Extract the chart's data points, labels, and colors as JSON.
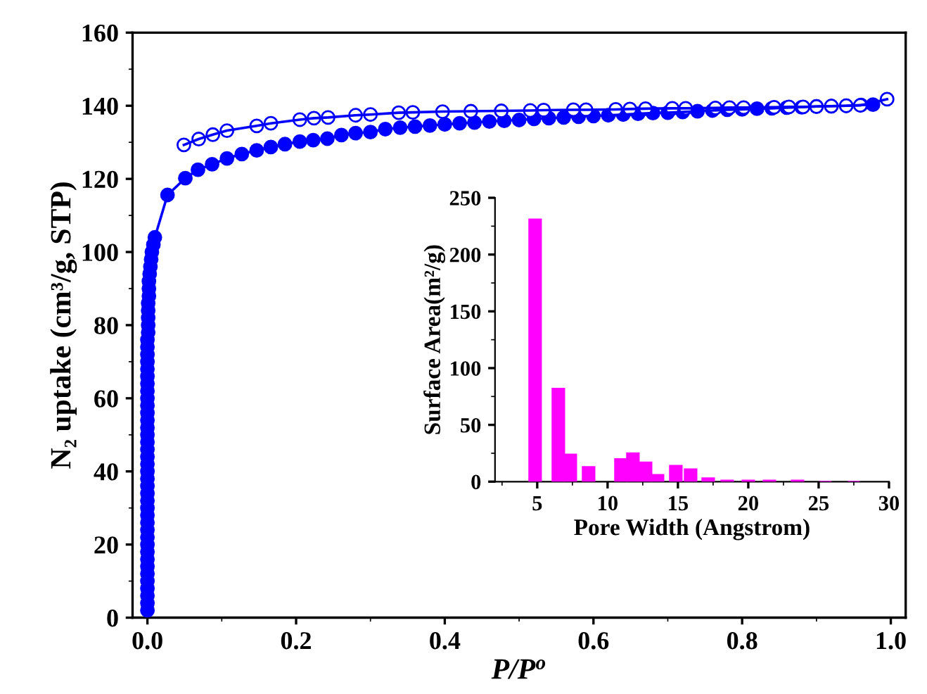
{
  "chart_data": [
    {
      "type": "line",
      "xlabel": "P/P$^{o}$",
      "ylabel": "N₂ uptake (cm³/g, STP)",
      "xlim": [
        -0.02,
        1.02
      ],
      "ylim": [
        0,
        160
      ],
      "xticks": [
        {
          "value": 0,
          "label": "0.0"
        },
        {
          "value": 0.2,
          "label": "0.2"
        },
        {
          "value": 0.4,
          "label": "0.4"
        },
        {
          "value": 0.6,
          "label": "0.6"
        },
        {
          "value": 0.8,
          "label": "0.8"
        },
        {
          "value": 1.0,
          "label": "1.0"
        }
      ],
      "yticks": [
        0,
        20,
        40,
        60,
        80,
        100,
        120,
        140,
        160
      ],
      "marker": "circle",
      "line_style": "solid",
      "grid": false,
      "legend": false,
      "series": [
        {
          "color": "#0000ff",
          "x": [
            0.0,
            0.0,
            0.0,
            0.0,
            0.0,
            0.0,
            0.0,
            0.0,
            0.0,
            0.0,
            0.0,
            0.0,
            0.0,
            0.0,
            0.0,
            0.0,
            0.0,
            0.0,
            0.0,
            0.0,
            0.0,
            0.0,
            0.0,
            0.0,
            0.0,
            0.0,
            0.0,
            0.0,
            0.0,
            0.0,
            0.0,
            0.0,
            0.0,
            0.0,
            0.0,
            0.0,
            0.0,
            0.0,
            0.001,
            0.001,
            0.001,
            0.001,
            0.001,
            0.002,
            0.002,
            0.002,
            0.003,
            0.004,
            0.005,
            0.006,
            0.008,
            0.01,
            0.027,
            0.051,
            0.068,
            0.087,
            0.107,
            0.127,
            0.147,
            0.166,
            0.185,
            0.205,
            0.223,
            0.242,
            0.261,
            0.28,
            0.3,
            0.32,
            0.34,
            0.36,
            0.38,
            0.4,
            0.42,
            0.44,
            0.46,
            0.48,
            0.5,
            0.52,
            0.54,
            0.56,
            0.58,
            0.6,
            0.62,
            0.64,
            0.66,
            0.68,
            0.7,
            0.72,
            0.74,
            0.76,
            0.78,
            0.8,
            0.82,
            0.84,
            0.86,
            0.88,
            0.9,
            0.92,
            0.94,
            0.96,
            0.976
          ],
          "values": [
            2,
            4,
            6,
            8,
            10,
            12,
            14,
            16,
            18,
            20,
            22,
            24,
            26,
            28,
            30,
            32,
            34,
            36,
            38,
            40,
            42,
            44,
            46,
            48,
            50,
            52,
            54,
            56,
            58,
            60,
            62,
            64,
            66,
            68,
            70,
            72,
            74,
            76,
            78,
            80,
            82,
            84,
            86,
            88,
            90,
            92,
            94,
            96,
            98,
            100,
            102,
            104,
            115.6,
            120.2,
            122.5,
            124,
            125.6,
            126.8,
            127.8,
            128.7,
            129.5,
            130.2,
            130.6,
            131,
            132,
            132.5,
            132.8,
            133.6,
            134,
            134.3,
            134.6,
            134.9,
            135.2,
            135.4,
            135.7,
            135.9,
            136.1,
            136.4,
            136.6,
            136.8,
            137,
            137.2,
            137.4,
            137.6,
            137.8,
            138,
            138.1,
            138.3,
            138.5,
            138.7,
            138.9,
            139,
            139.2,
            139.3,
            139.5,
            139.6,
            139.8,
            139.9,
            140,
            140.2,
            140.3
          ]
        },
        {
          "color": "#0000ff",
          "x": [
            0.049,
            0.069,
            0.088,
            0.107,
            0.147,
            0.166,
            0.205,
            0.224,
            0.243,
            0.28,
            0.3,
            0.338,
            0.357,
            0.397,
            0.435,
            0.476,
            0.515,
            0.533,
            0.573,
            0.59,
            0.63,
            0.649,
            0.67,
            0.706,
            0.724,
            0.764,
            0.783,
            0.802,
            0.843,
            0.863,
            0.882,
            0.9,
            0.92,
            0.94,
            0.959,
            0.995
          ],
          "values": [
            129.3,
            130.9,
            132.1,
            133.2,
            134.5,
            135.2,
            136.2,
            136.6,
            136.8,
            137.4,
            137.6,
            138.1,
            138.2,
            138.4,
            138.5,
            138.6,
            138.7,
            138.8,
            138.9,
            138.9,
            139,
            139.1,
            139.2,
            139.3,
            139.3,
            139.4,
            139.5,
            139.5,
            139.6,
            139.7,
            139.7,
            139.8,
            139.9,
            140,
            140.1,
            141.8
          ]
        }
      ]
    },
    {
      "type": "bar",
      "xlabel": "Pore Width (Angstrom)",
      "ylabel": "Surface Area(m²/g)",
      "xlim": [
        2,
        30
      ],
      "ylim": [
        0,
        250
      ],
      "xticks": [
        5,
        10,
        15,
        20,
        25,
        30
      ],
      "yticks": [
        0,
        50,
        100,
        150,
        200,
        250
      ],
      "grid": false,
      "legend": false,
      "color": "#ff00ff",
      "x": [
        4.85,
        6.5,
        7.35,
        8.65,
        10.95,
        11.8,
        12.7,
        13.55,
        14.85,
        15.9,
        17.15,
        18.5,
        20.0,
        21.5,
        23.5,
        25.5,
        27.5
      ],
      "values": [
        231,
        82,
        24,
        13,
        20,
        25,
        17,
        6,
        14,
        11,
        3,
        1,
        1,
        1,
        1,
        0,
        0
      ]
    }
  ]
}
